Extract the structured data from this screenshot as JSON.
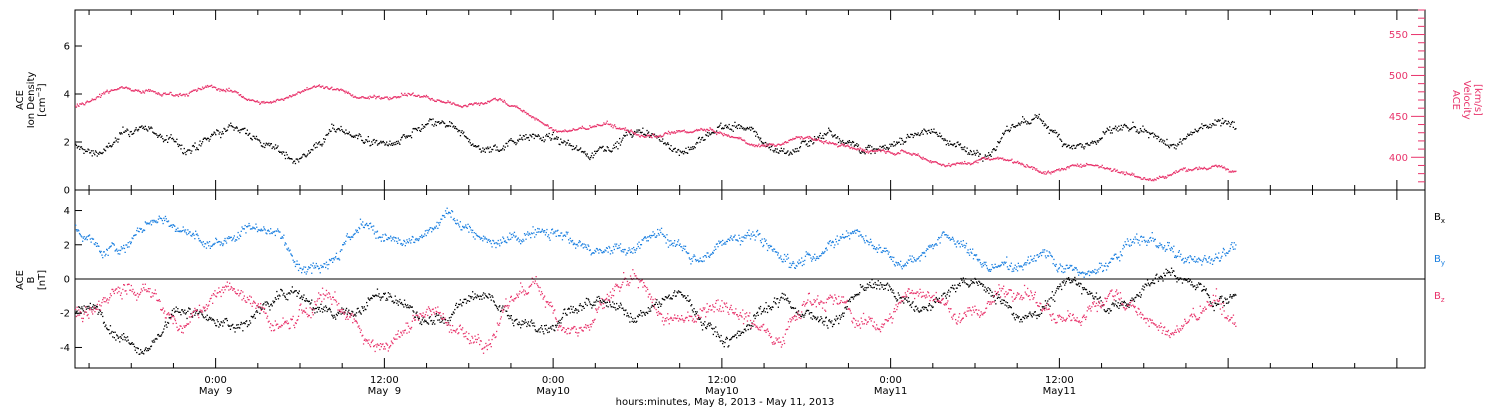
{
  "chart_data": [
    {
      "type": "scatter",
      "panel": "top",
      "ylabel_lines": [
        "ACE",
        "Ion Density"
      ],
      "ylabel_unit": "[cm",
      "ylabel_unit_sup": "−3",
      "ylabel_unit_end": "]",
      "ylim": [
        0,
        7.5
      ],
      "yticks": [
        0,
        2,
        4,
        6
      ],
      "y2label_lines": [
        "ACE",
        "Velocity"
      ],
      "y2label_unit": "[km/s]",
      "y2lim": [
        360,
        580
      ],
      "y2ticks": [
        400,
        450,
        500,
        550
      ],
      "series": [
        {
          "name": "Ion Density",
          "color": "#000000",
          "axis": "left",
          "points": [
            [
              -10,
              2.0
            ],
            [
              0,
              2.2
            ],
            [
              6,
              1.8
            ],
            [
              12,
              2.4
            ],
            [
              18,
              2.0
            ],
            [
              24,
              2.1
            ],
            [
              30,
              2.0
            ],
            [
              36,
              2.3
            ],
            [
              42,
              2.0
            ],
            [
              48,
              2.2
            ],
            [
              54,
              2.0
            ],
            [
              60,
              2.6
            ],
            [
              66,
              1.9
            ],
            [
              72,
              2.6
            ]
          ],
          "noise": 0.55
        },
        {
          "name": "Velocity",
          "color": "#e8336b",
          "axis": "right",
          "points": [
            [
              -10,
              468
            ],
            [
              -5,
              488
            ],
            [
              0,
              480
            ],
            [
              4,
              472
            ],
            [
              8,
              485
            ],
            [
              12,
              476
            ],
            [
              16,
              470
            ],
            [
              20,
              468
            ],
            [
              24,
              438
            ],
            [
              28,
              432
            ],
            [
              32,
              430
            ],
            [
              36,
              425
            ],
            [
              40,
              418
            ],
            [
              44,
              420
            ],
            [
              48,
              408
            ],
            [
              52,
              400
            ],
            [
              56,
              396
            ],
            [
              60,
              390
            ],
            [
              64,
              385
            ],
            [
              68,
              382
            ],
            [
              72,
              388
            ]
          ],
          "noise": 7
        }
      ]
    },
    {
      "type": "scatter",
      "panel": "bottom",
      "ylabel_lines": [
        "ACE",
        "B"
      ],
      "ylabel_unit": "[nT]",
      "ylim": [
        -5.2,
        5.2
      ],
      "yticks": [
        -4,
        -2,
        0,
        2,
        4
      ],
      "zero_line": true,
      "series": [
        {
          "name": "B",
          "sub": "x",
          "color": "#000000",
          "points": [
            [
              -10,
              -2.5
            ],
            [
              0,
              -2.5
            ],
            [
              6,
              -1.0
            ],
            [
              12,
              -2.0
            ],
            [
              18,
              -1.8
            ],
            [
              24,
              -2.0
            ],
            [
              30,
              -1.5
            ],
            [
              36,
              -2.5
            ],
            [
              42,
              -1.5
            ],
            [
              48,
              -1.2
            ],
            [
              54,
              -1.0
            ],
            [
              60,
              -1.0
            ],
            [
              66,
              -0.5
            ],
            [
              72,
              -0.5
            ]
          ],
          "noise": 1.0
        },
        {
          "name": "B",
          "sub": "y",
          "color": "#1a7fe0",
          "points": [
            [
              -10,
              2.5
            ],
            [
              0,
              2.8
            ],
            [
              6,
              2.2
            ],
            [
              12,
              2.5
            ],
            [
              18,
              2.5
            ],
            [
              24,
              2.8
            ],
            [
              30,
              1.8
            ],
            [
              36,
              2.3
            ],
            [
              42,
              2.0
            ],
            [
              48,
              2.5
            ],
            [
              54,
              1.5
            ],
            [
              60,
              0.8
            ],
            [
              66,
              1.5
            ],
            [
              72,
              1.5
            ]
          ],
          "noise": 1.0
        },
        {
          "name": "B",
          "sub": "z",
          "color": "#e8336b",
          "points": [
            [
              -10,
              -1.0
            ],
            [
              0,
              -1.5
            ],
            [
              6,
              -2.0
            ],
            [
              12,
              -2.5
            ],
            [
              18,
              -2.5
            ],
            [
              24,
              -1.5
            ],
            [
              30,
              -1.8
            ],
            [
              36,
              -2.0
            ],
            [
              42,
              -1.5
            ],
            [
              48,
              -1.8
            ],
            [
              54,
              -1.0
            ],
            [
              60,
              -1.5
            ],
            [
              66,
              -2.0
            ],
            [
              72,
              -3.0
            ]
          ],
          "noise": 1.3
        }
      ]
    }
  ],
  "x_axis": {
    "range_hours": [
      -10,
      86
    ],
    "data_end_hours": 72.5,
    "tick_hours": [
      0,
      12,
      24,
      36,
      48,
      60
    ],
    "tick_labels": [
      {
        "time": "0:00",
        "day": "May  9"
      },
      {
        "time": "12:00",
        "day": "May  9"
      },
      {
        "time": "0:00",
        "day": "May10"
      },
      {
        "time": "12:00",
        "day": "May10"
      },
      {
        "time": "0:00",
        "day": "May11"
      },
      {
        "time": "12:00",
        "day": "May11"
      }
    ],
    "title": "hours:minutes, May  8, 2013 - May 11, 2013"
  }
}
